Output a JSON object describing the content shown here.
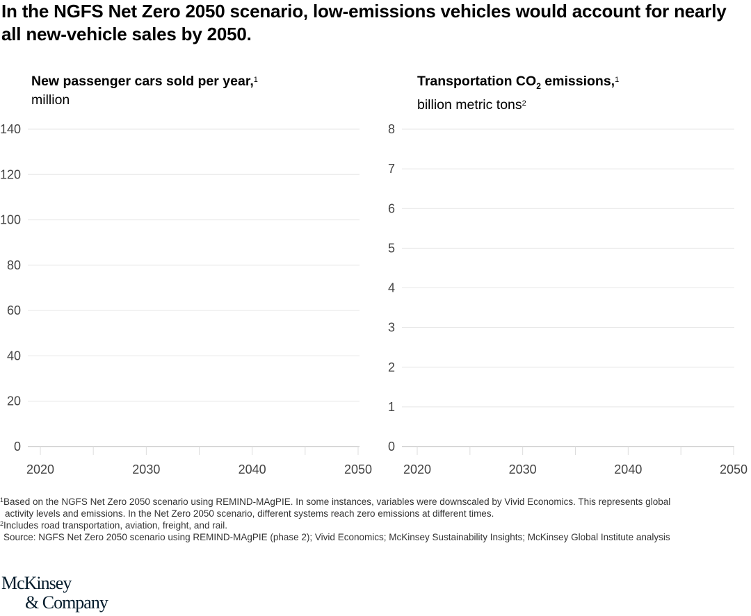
{
  "title": "In the NGFS Net Zero 2050 scenario, low-emissions vehicles would account for nearly all new-vehicle sales by 2050.",
  "chart_data": [
    {
      "type": "line",
      "title": "New passenger cars sold per year,",
      "title_sup": "1",
      "unit": "million",
      "unit_sup": "",
      "x_ticks": [
        2020,
        2030,
        2040,
        2050
      ],
      "minor_x_ticks": [
        2025,
        2035,
        2045
      ],
      "xlim": [
        2020,
        2050
      ],
      "y_ticks": [
        0,
        20,
        40,
        60,
        80,
        100,
        120,
        140
      ],
      "ylim": [
        0,
        140
      ],
      "grid": true,
      "series": []
    },
    {
      "type": "line",
      "title": "Transportation CO",
      "title_sub": "2",
      "title_rest": " emissions,",
      "title_sup": "1",
      "unit": "billion metric tons",
      "unit_sup": "2",
      "x_ticks": [
        2020,
        2030,
        2040,
        2050
      ],
      "minor_x_ticks": [
        2025,
        2035,
        2045
      ],
      "xlim": [
        2020,
        2050
      ],
      "y_ticks": [
        0,
        1,
        2,
        3,
        4,
        5,
        6,
        7,
        8
      ],
      "ylim": [
        0,
        8
      ],
      "grid": true,
      "series": []
    }
  ],
  "footnotes": {
    "n1_mark": "1",
    "n1_line1": "Based on the NGFS Net Zero 2050 scenario using REMIND-MAgPIE. In some instances, variables were downscaled by Vivid Economics. This represents global",
    "n1_line2": "activity levels and emissions. In the Net Zero 2050 scenario, different systems reach zero emissions at different times.",
    "n2_mark": "2",
    "n2": "Includes road transportation, aviation, freight, and rail.",
    "source": "Source: NGFS Net Zero 2050 scenario using REMIND-MAgPIE (phase 2); Vivid Economics; McKinsey Sustainability Insights; McKinsey Global Institute analysis"
  },
  "logo": {
    "line1": "McKinsey",
    "line2": "& Company"
  }
}
